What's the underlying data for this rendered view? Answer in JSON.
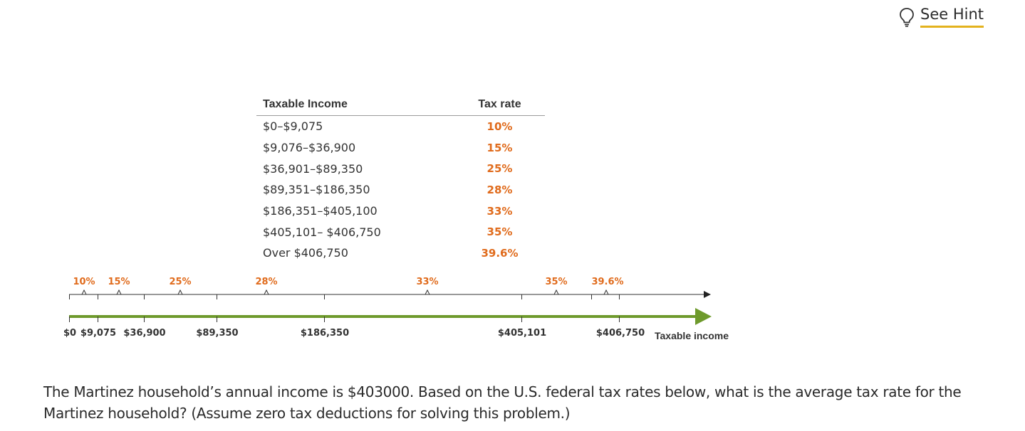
{
  "hint": {
    "label": "See Hint",
    "icon": "lightbulb-icon"
  },
  "table": {
    "headers": {
      "income": "Taxable Income",
      "rate": "Tax rate"
    },
    "rows": [
      {
        "income": "$0–$9,075",
        "rate": "10%"
      },
      {
        "income": "$9,076–$36,900",
        "rate": "15%"
      },
      {
        "income": "$36,901–$89,350",
        "rate": "25%"
      },
      {
        "income": "$89,351–$186,350",
        "rate": "28%"
      },
      {
        "income": "$186,351–$405,100",
        "rate": "33%"
      },
      {
        "income": "$405,101– $406,750",
        "rate": "35%"
      },
      {
        "income": "Over $406,750",
        "rate": "39.6%"
      }
    ]
  },
  "timeline": {
    "rates": [
      "10%",
      "15%",
      "25%",
      "28%",
      "33%",
      "35%",
      "39.6%"
    ],
    "amounts": [
      "$0",
      "$9,075",
      "$36,900",
      "$89,350",
      "$186,350",
      "$405,101",
      "$406,750"
    ],
    "axis_label": "Taxable income",
    "colors": {
      "rate": "#e06b1c",
      "arrow": "#6e9a2c",
      "line": "#333333"
    }
  },
  "question": {
    "text": "The Martinez household’s annual income is $403000. Based on the U.S. federal tax rates below, what is the average tax rate for the Martinez household? (Assume zero tax deductions for solving this problem.)"
  }
}
